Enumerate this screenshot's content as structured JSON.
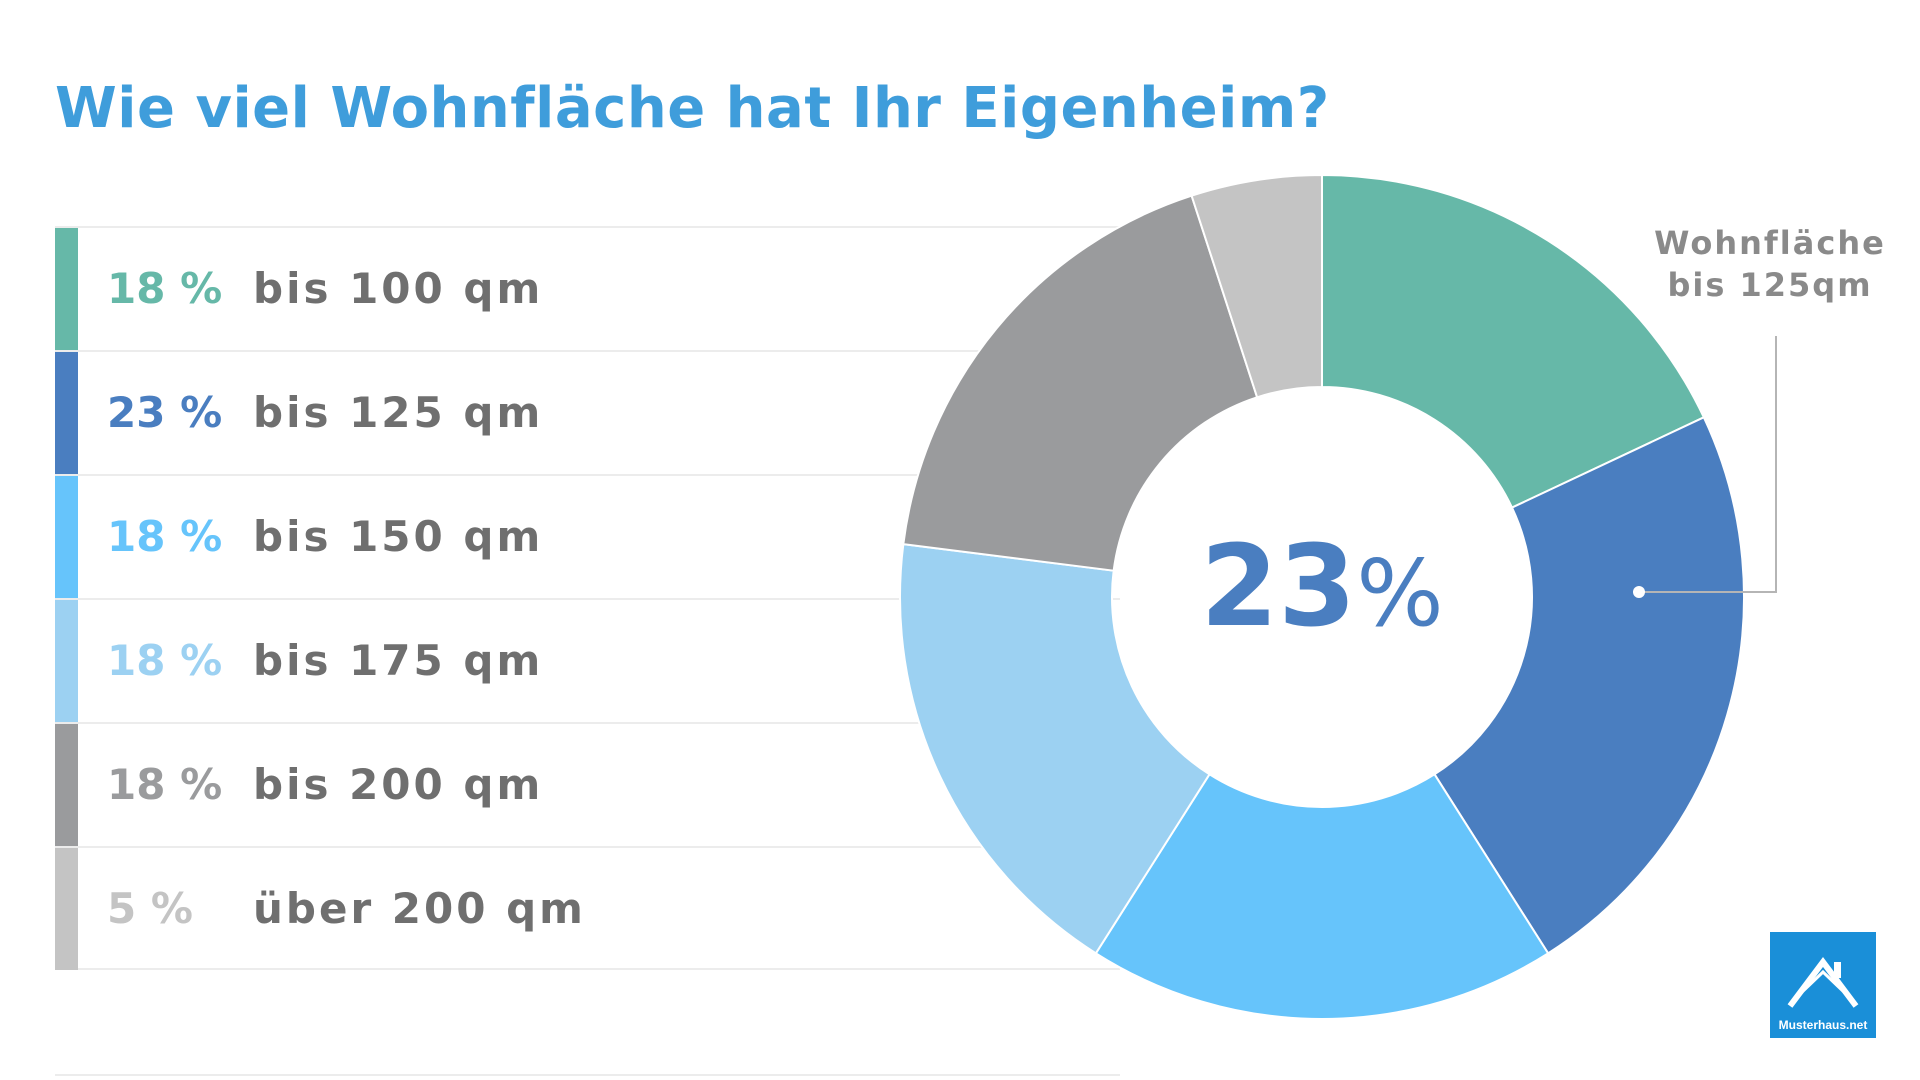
{
  "title": "Wie viel Wohnfläche hat Ihr Eigenheim?",
  "legend": [
    {
      "pct": "18 %",
      "label": "bis 100 qm"
    },
    {
      "pct": "23 %",
      "label": "bis 125 qm"
    },
    {
      "pct": "18 %",
      "label": "bis 150 qm"
    },
    {
      "pct": "18 %",
      "label": "bis 175 qm"
    },
    {
      "pct": "18 %",
      "label": "bis 200 qm"
    },
    {
      "pct": "5 %",
      "label": "über 200 qm"
    }
  ],
  "colors": [
    "#66b8a8",
    "#4a7ec0",
    "#66c4fb",
    "#9cd1f2",
    "#9a9b9d",
    "#c4c4c4"
  ],
  "center": {
    "value": "23",
    "unit": "%"
  },
  "callout": {
    "line1": "Wohnfläche",
    "line2": "bis 125qm"
  },
  "logo": {
    "text": "Musterhaus.net",
    "icon": "house-roof-icon"
  },
  "chart_data": {
    "type": "pie",
    "variant": "donut",
    "title": "Wie viel Wohnfläche hat Ihr Eigenheim?",
    "categories": [
      "bis 100 qm",
      "bis 125 qm",
      "bis 150 qm",
      "bis 175 qm",
      "bis 200 qm",
      "über 200 qm"
    ],
    "values": [
      18,
      23,
      18,
      18,
      18,
      5
    ],
    "unit": "%",
    "highlight": "bis 125 qm",
    "legend_position": "left"
  }
}
